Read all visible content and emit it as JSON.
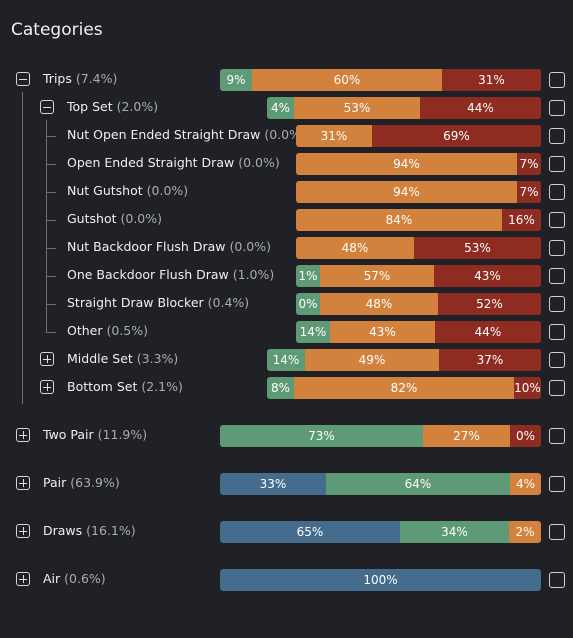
{
  "header": {
    "title": "Categories"
  },
  "trips": {
    "label": "Trips",
    "pct": "(7.4%)",
    "segs": [
      "9%",
      "60%",
      "31%"
    ]
  },
  "top_set": {
    "label": "Top Set",
    "pct": "(2.0%)",
    "segs": [
      "4%",
      "53%",
      "44%"
    ]
  },
  "children": [
    {
      "label": "Nut Open Ended Straight Draw",
      "pct": "(0.0%)",
      "segs": [
        "31%",
        "69%"
      ]
    },
    {
      "label": "Open Ended Straight Draw",
      "pct": "(0.0%)",
      "segs": [
        "94%",
        "7%"
      ]
    },
    {
      "label": "Nut Gutshot",
      "pct": "(0.0%)",
      "segs": [
        "94%",
        "7%"
      ]
    },
    {
      "label": "Gutshot",
      "pct": "(0.0%)",
      "segs": [
        "84%",
        "16%"
      ]
    },
    {
      "label": "Nut Backdoor Flush Draw",
      "pct": "(0.0%)",
      "segs": [
        "48%",
        "53%"
      ]
    },
    {
      "label": "One Backdoor Flush Draw",
      "pct": "(1.0%)",
      "segs": [
        "1%",
        "57%",
        "43%"
      ]
    },
    {
      "label": "Straight Draw Blocker",
      "pct": "(0.4%)",
      "segs": [
        "0%",
        "48%",
        "52%"
      ]
    },
    {
      "label": "Other",
      "pct": "(0.5%)",
      "segs": [
        "14%",
        "43%",
        "44%"
      ]
    }
  ],
  "middle_set": {
    "label": "Middle Set",
    "pct": "(3.3%)",
    "segs": [
      "14%",
      "49%",
      "37%"
    ]
  },
  "bottom_set": {
    "label": "Bottom Set",
    "pct": "(2.1%)",
    "segs": [
      "8%",
      "82%",
      "10%"
    ]
  },
  "two_pair": {
    "label": "Two Pair",
    "pct": "(11.9%)",
    "segs": [
      "73%",
      "27%",
      "0%"
    ]
  },
  "pair": {
    "label": "Pair",
    "pct": "(63.9%)",
    "segs": [
      "33%",
      "64%",
      "4%"
    ]
  },
  "draws": {
    "label": "Draws",
    "pct": "(16.1%)",
    "segs": [
      "65%",
      "34%",
      "2%"
    ]
  },
  "air": {
    "label": "Air",
    "pct": "(0.6%)",
    "segs": [
      "100%"
    ]
  },
  "colors": {
    "green": "#5e9a76",
    "orange": "#d2823c",
    "red": "#8e2c22",
    "blue": "#456b8d",
    "background": "#1f2126"
  }
}
